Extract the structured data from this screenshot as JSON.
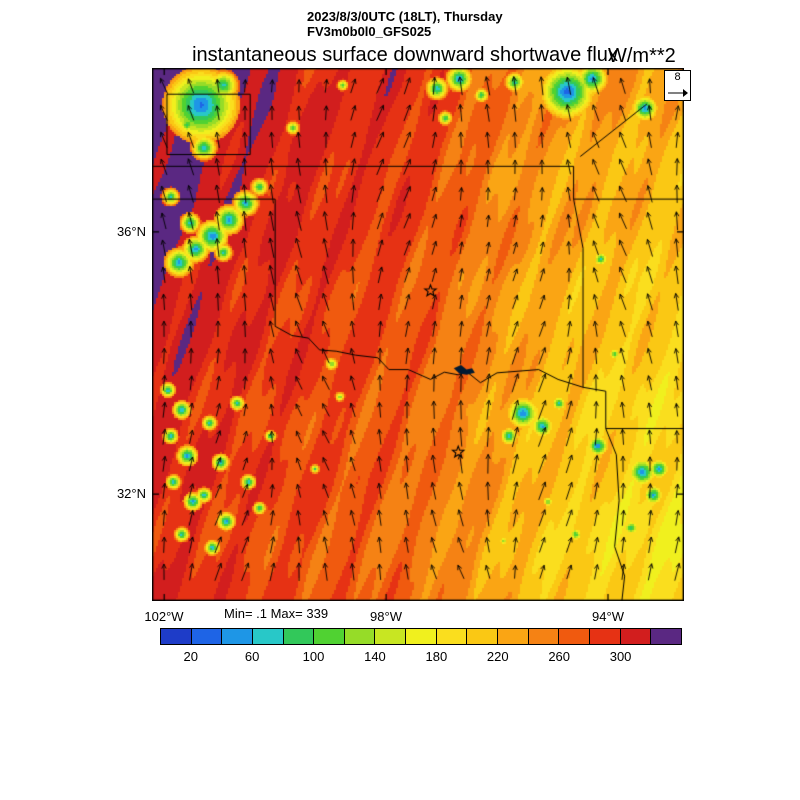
{
  "header": {
    "datetime_line": "2023/8/3/0UTC (18LT), Thursday",
    "model_line": "FV3m0b0l0_GFS025"
  },
  "title": {
    "text": "instantaneous surface downward shortwave flux",
    "units": "W/m**2"
  },
  "ref_vector": {
    "value": "8"
  },
  "stats": {
    "min_max": "Min= .1 Max= 339"
  },
  "axes": {
    "y_ticks": [
      {
        "label": "36°N",
        "lat": 36
      },
      {
        "label": "32°N",
        "lat": 32
      }
    ],
    "x_ticks": [
      {
        "label": "102°W",
        "lon": -102
      },
      {
        "label": "98°W",
        "lon": -98
      },
      {
        "label": "94°W",
        "lon": -94
      }
    ]
  },
  "colorbar": {
    "min": 0,
    "max": 340,
    "step": 20,
    "tick_labels": [
      "20",
      "60",
      "100",
      "140",
      "180",
      "220",
      "260",
      "300"
    ],
    "colors": [
      "#1e3cc8",
      "#1e64e6",
      "#1e96e6",
      "#28c8c8",
      "#32c85a",
      "#50d232",
      "#96dc28",
      "#c8e622",
      "#f0f01e",
      "#fade1e",
      "#fac814",
      "#faa514",
      "#f58214",
      "#f05a0f",
      "#e63214",
      "#d21e1e",
      "#5a2882"
    ]
  },
  "chart_data": {
    "type": "heatmap",
    "variable": "instantaneous surface downward shortwave flux",
    "units": "W/m**2",
    "stats": {
      "min": 0.1,
      "max": 339
    },
    "lon_range": [
      -102.22,
      -92.63
    ],
    "lat_range": [
      30.37,
      38.5
    ],
    "grid": {
      "cols": 16,
      "rows": 14,
      "values": [
        [
          320,
          332,
          336,
          322,
          300,
          292,
          296,
          300,
          288,
          268,
          252,
          240,
          238,
          234,
          230,
          228
        ],
        [
          334,
          330,
          324,
          310,
          302,
          296,
          292,
          296,
          284,
          264,
          250,
          242,
          236,
          232,
          228,
          224
        ],
        [
          330,
          334,
          316,
          306,
          312,
          298,
          290,
          292,
          280,
          262,
          250,
          240,
          234,
          228,
          224,
          220
        ],
        [
          334,
          326,
          312,
          302,
          298,
          292,
          286,
          288,
          276,
          258,
          246,
          236,
          230,
          224,
          220,
          214
        ],
        [
          330,
          318,
          314,
          300,
          294,
          288,
          284,
          284,
          272,
          256,
          244,
          232,
          226,
          220,
          214,
          208
        ],
        [
          324,
          312,
          304,
          296,
          292,
          286,
          282,
          280,
          268,
          252,
          240,
          228,
          222,
          216,
          210,
          204
        ],
        [
          316,
          306,
          300,
          292,
          288,
          284,
          280,
          276,
          264,
          250,
          236,
          226,
          218,
          212,
          206,
          200
        ],
        [
          312,
          302,
          296,
          290,
          286,
          282,
          278,
          272,
          262,
          246,
          234,
          222,
          214,
          208,
          202,
          196
        ],
        [
          306,
          300,
          294,
          288,
          284,
          280,
          276,
          270,
          258,
          244,
          230,
          220,
          212,
          204,
          200,
          194
        ],
        [
          304,
          298,
          292,
          286,
          282,
          278,
          274,
          268,
          256,
          242,
          228,
          218,
          208,
          202,
          196,
          192
        ],
        [
          302,
          296,
          290,
          284,
          280,
          276,
          272,
          264,
          252,
          240,
          226,
          214,
          206,
          200,
          194,
          188
        ],
        [
          300,
          294,
          288,
          282,
          278,
          274,
          270,
          262,
          250,
          238,
          224,
          212,
          204,
          196,
          192,
          186
        ],
        [
          298,
          292,
          286,
          280,
          276,
          272,
          268,
          260,
          248,
          236,
          222,
          210,
          202,
          194,
          188,
          184
        ],
        [
          296,
          290,
          284,
          278,
          274,
          270,
          266,
          258,
          246,
          234,
          220,
          208,
          200,
          192,
          186,
          182
        ]
      ]
    },
    "wind": {
      "reference": 8,
      "pattern": "southerly flow, arrows point mostly northward"
    },
    "clouds": [
      [
        -101.35,
        37.95,
        0.7,
        35
      ],
      [
        -100.95,
        38.25,
        0.3,
        70
      ],
      [
        -101.3,
        37.3,
        0.25,
        60
      ],
      [
        -101.6,
        37.65,
        0.18,
        85
      ],
      [
        -99.7,
        37.6,
        0.15,
        95
      ],
      [
        -98.8,
        38.25,
        0.12,
        95
      ],
      [
        -97.1,
        38.2,
        0.22,
        60
      ],
      [
        -96.7,
        38.35,
        0.25,
        50
      ],
      [
        -96.95,
        37.75,
        0.15,
        85
      ],
      [
        -96.3,
        38.1,
        0.15,
        80
      ],
      [
        -95.7,
        38.3,
        0.2,
        70
      ],
      [
        -94.75,
        38.15,
        0.5,
        28
      ],
      [
        -94.3,
        38.35,
        0.3,
        45
      ],
      [
        -93.35,
        37.9,
        0.25,
        45
      ],
      [
        -101.75,
        35.55,
        0.28,
        50
      ],
      [
        -101.45,
        35.75,
        0.25,
        45
      ],
      [
        -101.15,
        35.95,
        0.3,
        38
      ],
      [
        -100.85,
        36.2,
        0.28,
        45
      ],
      [
        -100.55,
        36.45,
        0.25,
        55
      ],
      [
        -100.3,
        36.7,
        0.18,
        80
      ],
      [
        -100.95,
        35.7,
        0.18,
        70
      ],
      [
        -101.55,
        36.15,
        0.2,
        60
      ],
      [
        -101.9,
        36.55,
        0.18,
        75
      ],
      [
        -101.95,
        33.6,
        0.15,
        60
      ],
      [
        -101.7,
        33.3,
        0.18,
        50
      ],
      [
        -101.9,
        32.9,
        0.15,
        55
      ],
      [
        -101.6,
        32.6,
        0.2,
        45
      ],
      [
        -101.85,
        32.2,
        0.15,
        60
      ],
      [
        -101.5,
        31.9,
        0.18,
        50
      ],
      [
        -101.2,
        33.1,
        0.15,
        65
      ],
      [
        -101.0,
        32.5,
        0.17,
        55
      ],
      [
        -101.3,
        32.0,
        0.15,
        60
      ],
      [
        -100.9,
        31.6,
        0.18,
        50
      ],
      [
        -101.7,
        31.4,
        0.15,
        65
      ],
      [
        -100.7,
        33.4,
        0.15,
        70
      ],
      [
        -100.5,
        32.2,
        0.15,
        60
      ],
      [
        -100.3,
        31.8,
        0.13,
        70
      ],
      [
        -100.1,
        32.9,
        0.12,
        75
      ],
      [
        -101.15,
        31.2,
        0.15,
        55
      ],
      [
        -99.3,
        32.4,
        0.1,
        95
      ],
      [
        -99.0,
        34.0,
        0.15,
        110
      ],
      [
        -98.85,
        33.5,
        0.12,
        120
      ],
      [
        -95.55,
        33.25,
        0.3,
        40
      ],
      [
        -95.2,
        33.05,
        0.22,
        50
      ],
      [
        -95.8,
        32.9,
        0.18,
        60
      ],
      [
        -94.9,
        33.4,
        0.15,
        70
      ],
      [
        -94.2,
        32.75,
        0.2,
        40
      ],
      [
        -93.4,
        32.35,
        0.28,
        45
      ],
      [
        -93.1,
        32.4,
        0.2,
        50
      ],
      [
        -93.2,
        32.0,
        0.2,
        55
      ],
      [
        -93.6,
        31.5,
        0.15,
        70
      ],
      [
        -94.15,
        35.6,
        0.15,
        75
      ],
      [
        -93.9,
        34.15,
        0.12,
        85
      ],
      [
        -95.1,
        31.9,
        0.12,
        100
      ],
      [
        -94.6,
        31.4,
        0.15,
        90
      ],
      [
        -95.9,
        31.3,
        0.1,
        110
      ]
    ],
    "borders": {
      "kansas_oklahoma": [
        [
          -102.22,
          37.0
        ],
        [
          -94.62,
          37.0
        ]
      ],
      "ok_panhandle_south": [
        [
          -102.22,
          36.5
        ],
        [
          -100.0,
          36.5
        ]
      ],
      "texas_oklahoma_vertical": [
        [
          -100.0,
          36.5
        ],
        [
          -100.0,
          34.56
        ]
      ],
      "red_river": [
        [
          -100.0,
          34.56
        ],
        [
          -99.7,
          34.42
        ],
        [
          -99.4,
          34.38
        ],
        [
          -99.2,
          34.2
        ],
        [
          -98.9,
          34.18
        ],
        [
          -98.55,
          34.12
        ],
        [
          -98.15,
          34.08
        ],
        [
          -97.95,
          33.9
        ],
        [
          -97.6,
          33.9
        ],
        [
          -97.2,
          33.75
        ],
        [
          -96.95,
          33.86
        ],
        [
          -96.7,
          33.82
        ],
        [
          -96.55,
          33.87
        ],
        [
          -96.3,
          33.7
        ],
        [
          -96.0,
          33.85
        ],
        [
          -95.55,
          33.88
        ],
        [
          -95.25,
          33.9
        ],
        [
          -94.9,
          33.75
        ],
        [
          -94.45,
          33.63
        ]
      ],
      "texas_arkansas_louisiana": [
        [
          -94.45,
          33.63
        ],
        [
          -94.04,
          33.57
        ],
        [
          -94.04,
          33.0
        ],
        [
          -93.85,
          32.6
        ],
        [
          -93.8,
          31.9
        ],
        [
          -93.88,
          31.2
        ],
        [
          -93.7,
          30.75
        ],
        [
          -93.75,
          30.37
        ]
      ],
      "oklahoma_east": [
        [
          -94.62,
          37.0
        ],
        [
          -94.62,
          36.5
        ],
        [
          -94.45,
          35.75
        ],
        [
          -94.45,
          33.63
        ]
      ],
      "missouri_arkansas": [
        [
          -94.62,
          36.5
        ],
        [
          -92.63,
          36.5
        ]
      ],
      "arkansas_louisiana": [
        [
          -94.04,
          33.0
        ],
        [
          -92.63,
          33.0
        ]
      ],
      "domain_box": [
        [
          -101.95,
          38.1
        ],
        [
          -100.45,
          38.1
        ],
        [
          -100.45,
          37.18
        ],
        [
          -101.95,
          37.18
        ],
        [
          -101.95,
          38.1
        ]
      ],
      "river_ne": [
        [
          -94.5,
          37.15
        ],
        [
          -93.3,
          37.95
        ]
      ]
    },
    "markers": {
      "stars": [
        [
          -97.2,
          35.1
        ],
        [
          -96.7,
          32.64
        ]
      ],
      "lake": {
        "name": "lake-texoma",
        "outline": [
          [
            -96.78,
            33.92
          ],
          [
            -96.65,
            33.97
          ],
          [
            -96.55,
            33.9
          ],
          [
            -96.45,
            33.92
          ],
          [
            -96.4,
            33.85
          ],
          [
            -96.55,
            33.82
          ],
          [
            -96.68,
            33.84
          ]
        ]
      }
    }
  }
}
